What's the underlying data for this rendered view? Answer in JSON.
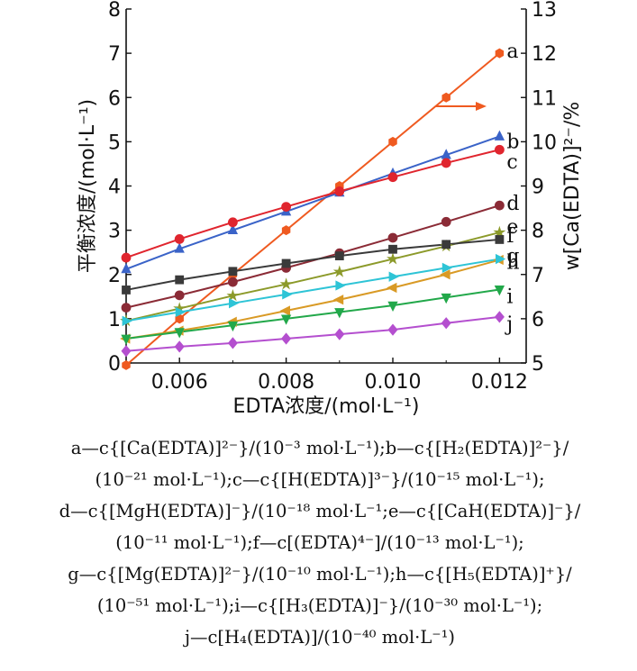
{
  "chart_data": {
    "type": "line",
    "x": [
      0.005,
      0.006,
      0.007,
      0.008,
      0.009,
      0.01,
      0.011,
      0.012
    ],
    "xlabel": "EDTA浓度/(mol·L⁻¹)",
    "ylabel_left": "平衡浓度/(mol·L⁻¹)",
    "ylabel_right": "w[Ca(EDTA)]²⁻/%",
    "xlim": [
      0.005,
      0.0125
    ],
    "ylim_left": [
      0,
      8
    ],
    "ylim_right": [
      5,
      13
    ],
    "x_ticks": [
      "0.006",
      "0.008",
      "0.010",
      "0.012"
    ],
    "y_left_ticks": [
      "0",
      "1",
      "2",
      "3",
      "4",
      "5",
      "6",
      "7",
      "8"
    ],
    "y_right_ticks": [
      "5",
      "6",
      "7",
      "8",
      "9",
      "10",
      "11",
      "12",
      "13"
    ],
    "grid": false,
    "arrow_note": "series a uses right axis",
    "series": [
      {
        "name": "a",
        "axis": "right",
        "color": "#ef5a20",
        "marker": "hexagon",
        "values": [
          4.95,
          6.0,
          7.0,
          8.0,
          9.0,
          10.0,
          11.0,
          12.0
        ]
      },
      {
        "name": "b",
        "axis": "left",
        "color": "#3a63c8",
        "marker": "triangle",
        "values": [
          2.12,
          2.58,
          3.0,
          3.42,
          3.85,
          4.28,
          4.7,
          5.12
        ]
      },
      {
        "name": "c",
        "axis": "left",
        "color": "#e0252e",
        "marker": "circle",
        "values": [
          2.38,
          2.8,
          3.18,
          3.53,
          3.88,
          4.2,
          4.52,
          4.82
        ]
      },
      {
        "name": "d",
        "axis": "left",
        "color": "#8b2b36",
        "marker": "circle",
        "values": [
          1.25,
          1.53,
          1.83,
          2.15,
          2.48,
          2.83,
          3.19,
          3.56
        ]
      },
      {
        "name": "e",
        "axis": "left",
        "color": "#8c9a2a",
        "marker": "star",
        "values": [
          0.95,
          1.23,
          1.52,
          1.78,
          2.06,
          2.35,
          2.64,
          2.95
        ]
      },
      {
        "name": "f",
        "axis": "left",
        "color": "#3a3a3a",
        "marker": "square",
        "values": [
          1.65,
          1.88,
          2.07,
          2.25,
          2.42,
          2.57,
          2.68,
          2.79
        ]
      },
      {
        "name": "g",
        "axis": "left",
        "color": "#d99a25",
        "marker": "triangle-left",
        "values": [
          0.55,
          0.73,
          0.93,
          1.18,
          1.43,
          1.7,
          2.0,
          2.33
        ]
      },
      {
        "name": "h",
        "axis": "left",
        "color": "#2ec4d6",
        "marker": "triangle-right",
        "values": [
          0.95,
          1.15,
          1.35,
          1.55,
          1.75,
          1.95,
          2.15,
          2.35
        ]
      },
      {
        "name": "i",
        "axis": "left",
        "color": "#22a84a",
        "marker": "triangle-down",
        "values": [
          0.55,
          0.7,
          0.85,
          1.0,
          1.15,
          1.3,
          1.48,
          1.66
        ]
      },
      {
        "name": "j",
        "axis": "left",
        "color": "#b44fcf",
        "marker": "diamond",
        "values": [
          0.27,
          0.37,
          0.45,
          0.55,
          0.65,
          0.75,
          0.9,
          1.04
        ]
      }
    ]
  },
  "caption": {
    "line1": "a—c{[Ca(EDTA)]²⁻}/(10⁻³ mol·L⁻¹);b—c{[H₂(EDTA)]²⁻}/",
    "line2": "(10⁻²¹ mol·L⁻¹);c—c{[H(EDTA)]³⁻}/(10⁻¹⁵ mol·L⁻¹);",
    "line3": "d—c{[MgH(EDTA)]⁻}/(10⁻¹⁸ mol·L⁻¹;e—c{[CaH(EDTA)]⁻}/",
    "line4": "(10⁻¹¹ mol·L⁻¹);f—c[(EDTA)⁴⁻]/(10⁻¹³ mol·L⁻¹);",
    "line5": "g—c{[Mg(EDTA)]²⁻}/(10⁻¹⁰ mol·L⁻¹);h—c{[H₅(EDTA)]⁺}/",
    "line6": "(10⁻⁵¹ mol·L⁻¹);i—c{[H₃(EDTA)]⁻}/(10⁻³⁰ mol·L⁻¹);",
    "line7": "j—c[H₄(EDTA)]/(10⁻⁴⁰ mol·L⁻¹)"
  }
}
